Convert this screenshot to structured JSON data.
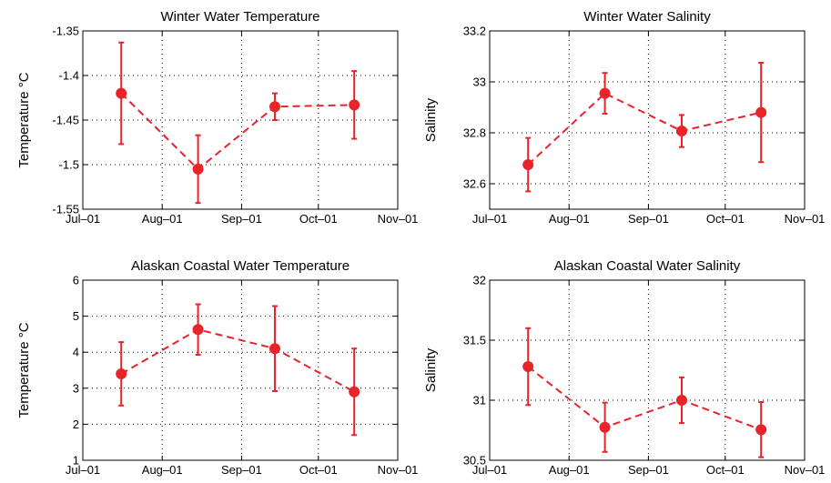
{
  "colors": {
    "series": "#e8232a",
    "axis": "#000000",
    "grid": "#000000"
  },
  "chart_data": [
    {
      "type": "line",
      "title": "Winter Water Temperature",
      "xlabel": "",
      "ylabel": "Temperature °C",
      "x_ticks": [
        "Jul–01",
        "Aug–01",
        "Sep–01",
        "Oct–01",
        "Nov–01"
      ],
      "xlim": [
        "2001-07-01",
        "2001-11-01"
      ],
      "ylim": [
        -1.55,
        -1.35
      ],
      "y_ticks": [
        "-1.35",
        "-1.4",
        "-1.45",
        "-1.5",
        "-1.55"
      ],
      "grid": true,
      "series": [
        {
          "x": [
            "2001-07-16",
            "2001-08-15",
            "2001-09-14",
            "2001-10-15"
          ],
          "y": [
            -1.42,
            -1.505,
            -1.435,
            -1.433
          ],
          "err": [
            0.057,
            0.038,
            0.015,
            0.038
          ]
        }
      ]
    },
    {
      "type": "line",
      "title": "Winter Water Salinity",
      "xlabel": "",
      "ylabel": "Salinity",
      "x_ticks": [
        "Jul–01",
        "Aug–01",
        "Sep–01",
        "Oct–01",
        "Nov–01"
      ],
      "xlim": [
        "2001-07-01",
        "2001-11-01"
      ],
      "ylim": [
        32.5,
        33.2
      ],
      "y_ticks": [
        "33.2",
        "33",
        "32.8",
        "32.6"
      ],
      "grid": true,
      "series": [
        {
          "x": [
            "2001-07-16",
            "2001-08-15",
            "2001-09-14",
            "2001-10-15"
          ],
          "y": [
            32.675,
            32.955,
            32.807,
            32.88
          ],
          "err": [
            0.105,
            0.08,
            0.063,
            0.195
          ]
        }
      ]
    },
    {
      "type": "line",
      "title": "Alaskan Coastal Water Temperature",
      "xlabel": "",
      "ylabel": "Temperature °C",
      "x_ticks": [
        "Jul–01",
        "Aug–01",
        "Sep–01",
        "Oct–01",
        "Nov–01"
      ],
      "xlim": [
        "2001-07-01",
        "2001-11-01"
      ],
      "ylim": [
        1,
        6
      ],
      "y_ticks": [
        "6",
        "5",
        "4",
        "3",
        "2",
        "1"
      ],
      "grid": true,
      "series": [
        {
          "x": [
            "2001-07-16",
            "2001-08-15",
            "2001-09-14",
            "2001-10-15"
          ],
          "y": [
            3.4,
            4.63,
            4.1,
            2.9
          ],
          "err": [
            0.88,
            0.7,
            1.18,
            1.2
          ]
        }
      ]
    },
    {
      "type": "line",
      "title": "Alaskan Coastal Water Salinity",
      "xlabel": "",
      "ylabel": "Salinity",
      "x_ticks": [
        "Jul–01",
        "Aug–01",
        "Sep–01",
        "Oct–01",
        "Nov–01"
      ],
      "xlim": [
        "2001-07-01",
        "2001-11-01"
      ],
      "ylim": [
        30.5,
        32
      ],
      "y_ticks": [
        "32",
        "31.5",
        "31",
        "30.5"
      ],
      "grid": true,
      "series": [
        {
          "x": [
            "2001-07-16",
            "2001-08-15",
            "2001-09-14",
            "2001-10-15"
          ],
          "y": [
            31.28,
            30.775,
            31.0,
            30.755
          ],
          "err": [
            0.32,
            0.205,
            0.19,
            0.23
          ]
        }
      ]
    }
  ]
}
